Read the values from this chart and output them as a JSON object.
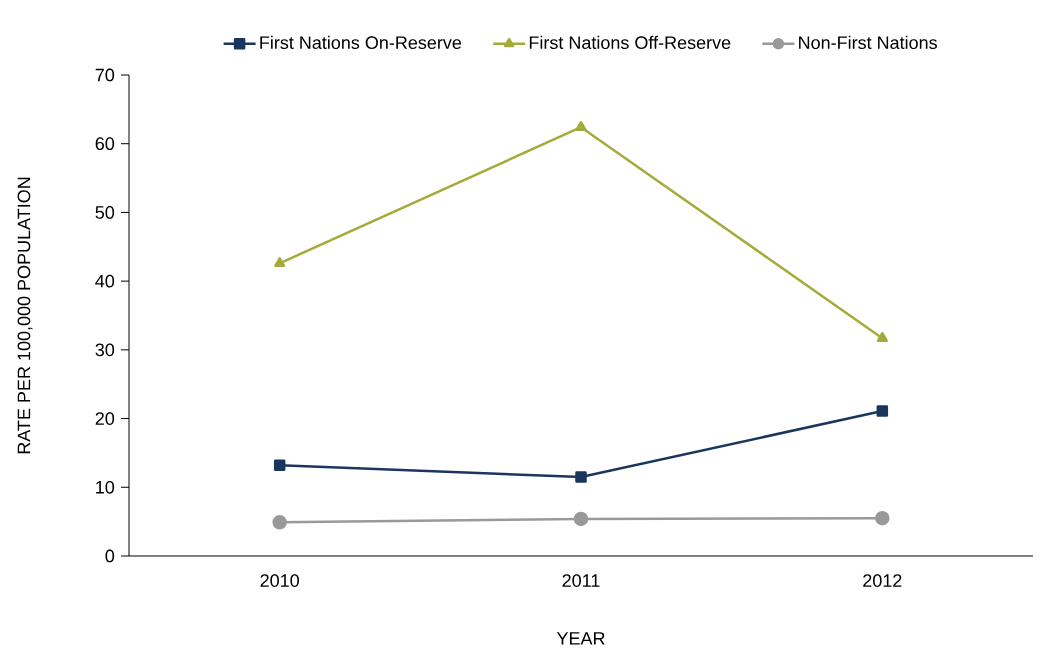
{
  "chart_data": {
    "type": "line",
    "xlabel": "YEAR",
    "ylabel": "RATE PER 100,000 POPULATION",
    "categories": [
      "2010",
      "2011",
      "2012"
    ],
    "ylim": [
      0,
      70
    ],
    "yticks": [
      0,
      10,
      20,
      30,
      40,
      50,
      60,
      70
    ],
    "legend": "top",
    "series": [
      {
        "name": "First Nations On-Reserve",
        "color": "#1b365d",
        "marker": "square",
        "values": [
          13.2,
          11.5,
          21.1
        ]
      },
      {
        "name": "First Nations Off-Reserve",
        "color": "#a5ab3a",
        "marker": "triangle",
        "values": [
          42.6,
          62.4,
          31.7
        ]
      },
      {
        "name": "Non-First Nations",
        "color": "#999999",
        "marker": "circle",
        "values": [
          4.9,
          5.4,
          5.5
        ]
      }
    ]
  }
}
